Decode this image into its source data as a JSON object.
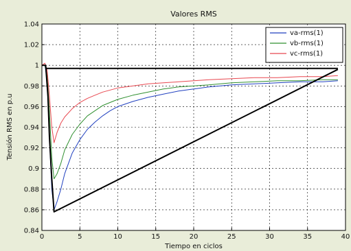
{
  "chart_data": {
    "type": "line",
    "title": "Valores RMS",
    "xlabel": "Tiempo en ciclos",
    "ylabel": "Tensión RMS en p.u",
    "xlim": [
      0,
      40
    ],
    "ylim": [
      0.84,
      1.04
    ],
    "xticks": [
      0,
      5,
      10,
      15,
      20,
      25,
      30,
      35,
      40
    ],
    "yticks": [
      0.84,
      0.86,
      0.88,
      0.9,
      0.92,
      0.94,
      0.96,
      0.98,
      1,
      1.02,
      1.04
    ],
    "ytick_labels": [
      "0.84",
      "0.86",
      "0.88",
      "0.9",
      "0.92",
      "0.94",
      "0.96",
      "0.98",
      "1",
      "1.02",
      "1.04"
    ],
    "grid": true,
    "legend_position": "top-right",
    "series": [
      {
        "name": "va-rms(1)",
        "color": "#1f3fbf",
        "x": [
          0,
          0.4,
          0.7,
          1.0,
          1.3,
          1.6,
          2.0,
          2.5,
          3,
          4,
          5,
          6,
          7,
          8,
          9,
          10,
          12,
          14,
          16,
          18,
          20,
          22,
          25,
          28,
          31,
          34,
          37,
          39
        ],
        "y": [
          1.0,
          1.0,
          0.985,
          0.93,
          0.88,
          0.86,
          0.868,
          0.88,
          0.895,
          0.915,
          0.928,
          0.938,
          0.945,
          0.951,
          0.956,
          0.96,
          0.965,
          0.969,
          0.972,
          0.975,
          0.977,
          0.979,
          0.981,
          0.982,
          0.983,
          0.984,
          0.984,
          0.985
        ]
      },
      {
        "name": "vb-rms(1)",
        "color": "#2f8f2f",
        "x": [
          0,
          0.4,
          0.7,
          1.0,
          1.3,
          1.6,
          2.0,
          2.5,
          3,
          4,
          5,
          6,
          7,
          8,
          9,
          10,
          12,
          14,
          16,
          18,
          20,
          22,
          25,
          28,
          31,
          34,
          37,
          39
        ],
        "y": [
          1.0,
          1.0,
          0.99,
          0.955,
          0.91,
          0.89,
          0.895,
          0.905,
          0.918,
          0.933,
          0.943,
          0.951,
          0.956,
          0.961,
          0.964,
          0.967,
          0.971,
          0.974,
          0.977,
          0.979,
          0.98,
          0.981,
          0.983,
          0.984,
          0.985,
          0.985,
          0.986,
          0.986
        ]
      },
      {
        "name": "vc-rms(1)",
        "color": "#e8474f",
        "x": [
          0,
          0.4,
          0.7,
          1.0,
          1.3,
          1.6,
          2.0,
          2.5,
          3,
          4,
          5,
          6,
          7,
          8,
          9,
          10,
          12,
          14,
          16,
          18,
          20,
          22,
          25,
          28,
          31,
          34,
          37,
          39
        ],
        "y": [
          1.0,
          1.002,
          0.995,
          0.97,
          0.94,
          0.925,
          0.935,
          0.944,
          0.95,
          0.958,
          0.964,
          0.968,
          0.971,
          0.974,
          0.976,
          0.978,
          0.98,
          0.982,
          0.983,
          0.984,
          0.985,
          0.986,
          0.987,
          0.988,
          0.988,
          0.989,
          0.989,
          0.99
        ]
      },
      {
        "name": "",
        "color": "#000000",
        "x": [
          0,
          0.5,
          0.8,
          1.0,
          1.3,
          1.6,
          39
        ],
        "y": [
          1.0,
          1.0,
          0.97,
          0.93,
          0.89,
          0.858,
          0.996
        ]
      },
      {
        "name": "",
        "color": "#000000",
        "x": [
          0.5,
          39
        ],
        "y": [
          0.997,
          0.997
        ]
      }
    ]
  }
}
